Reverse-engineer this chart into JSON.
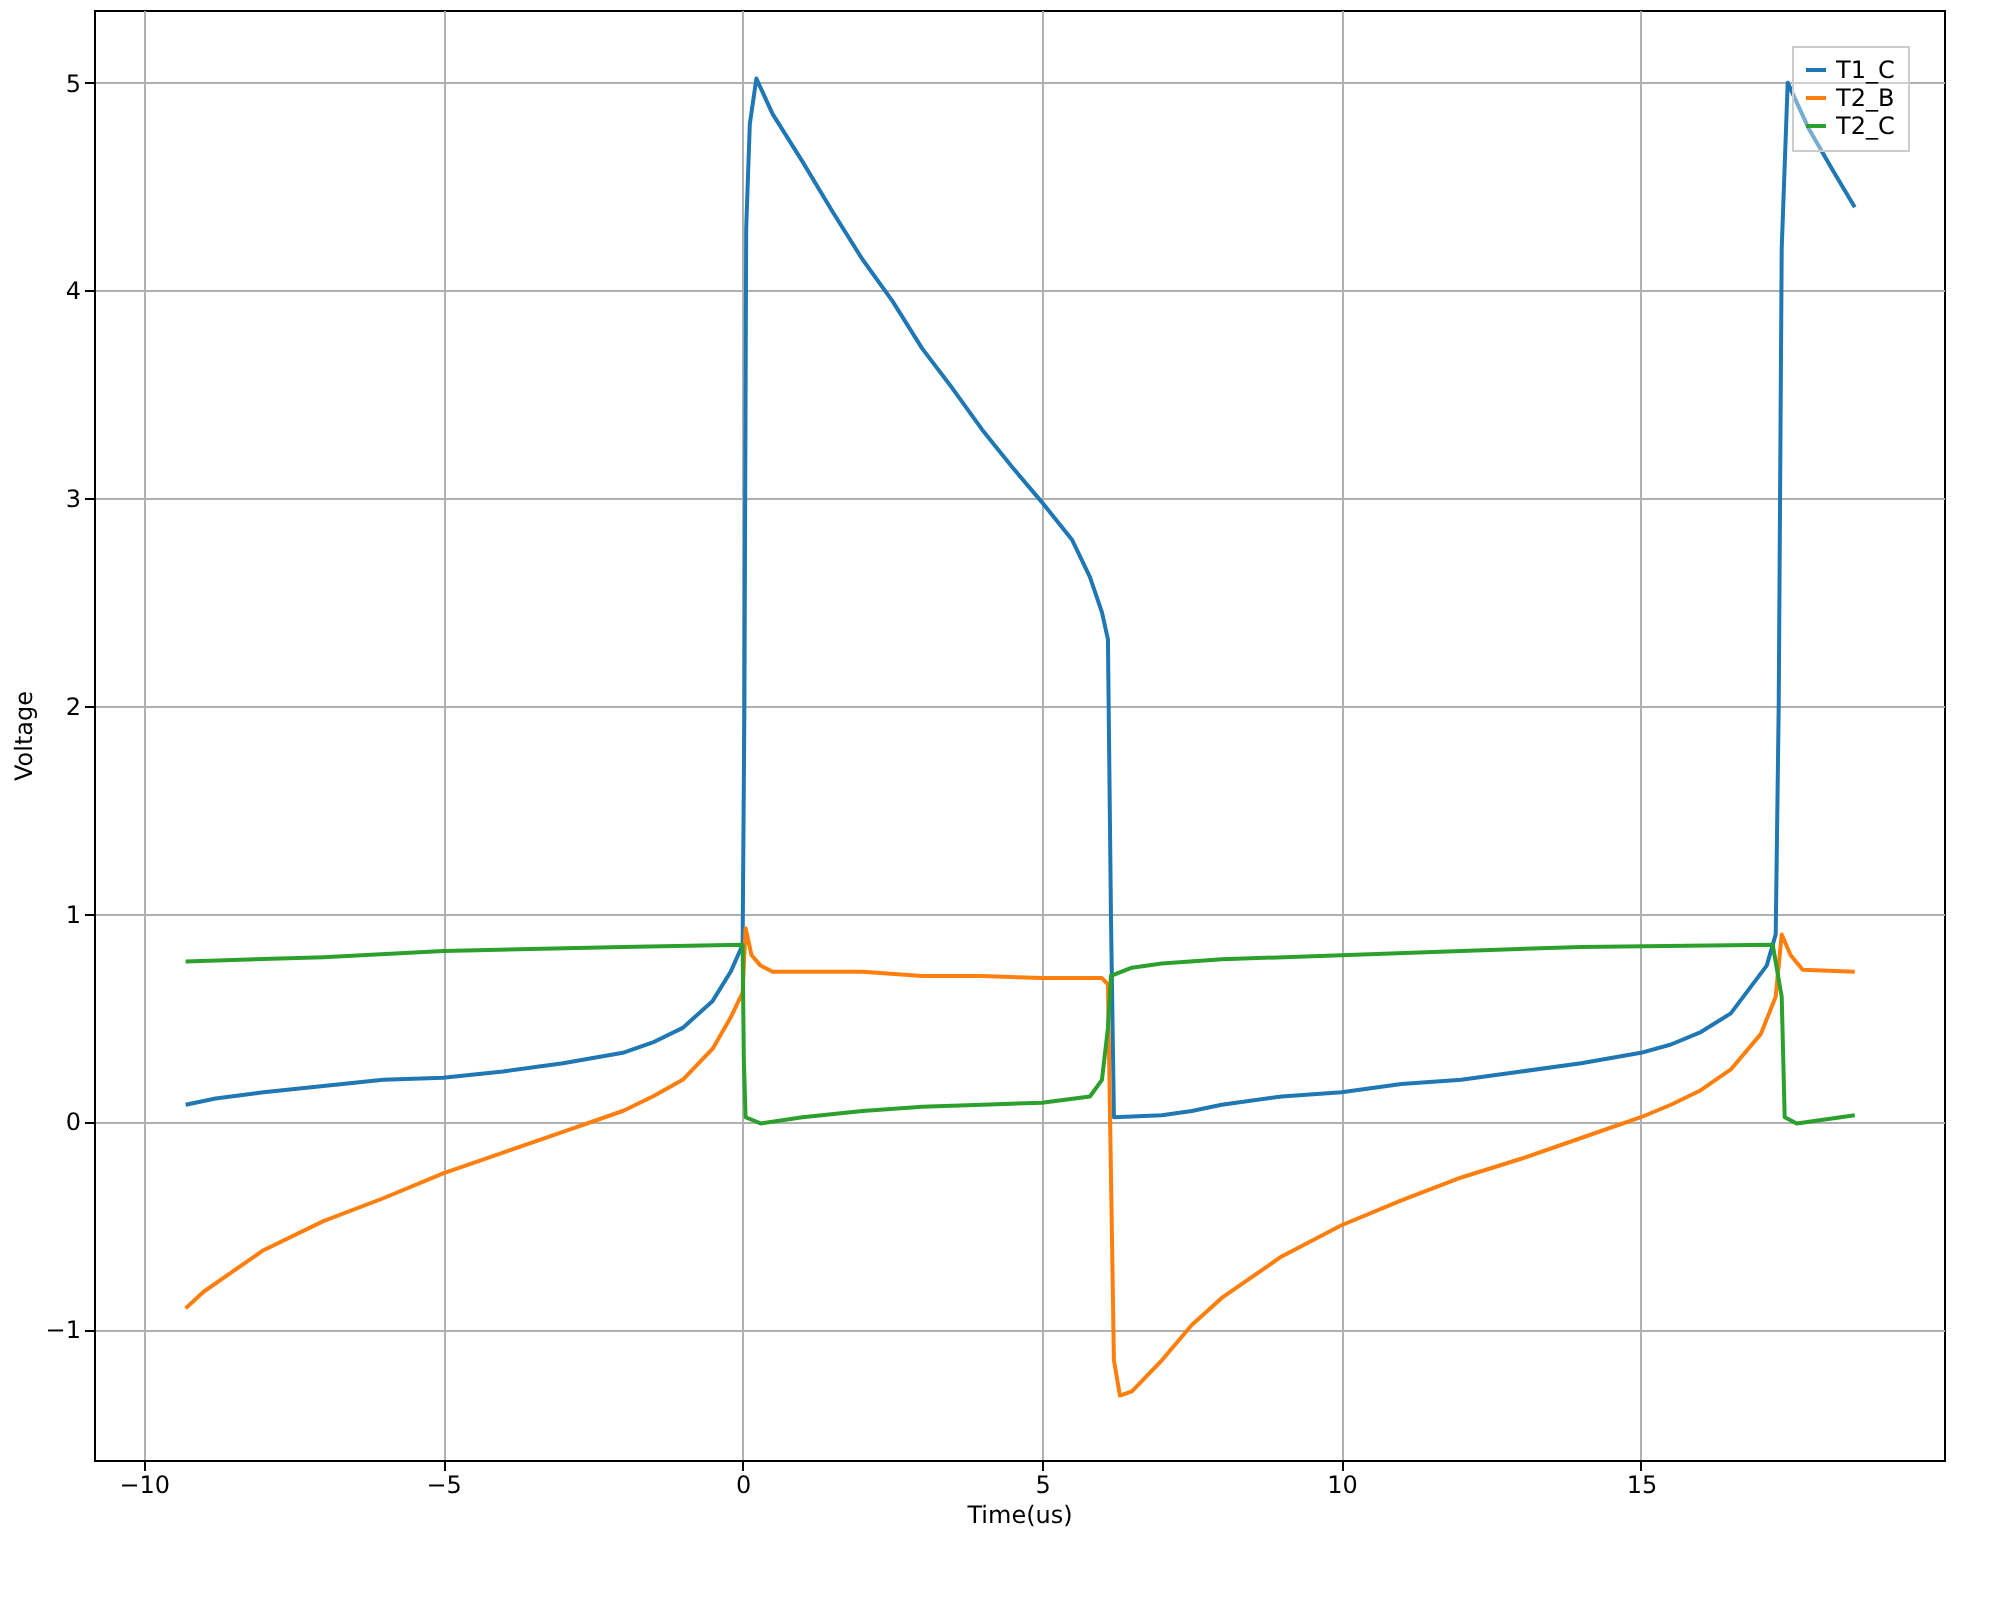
{
  "chart_data": {
    "type": "line",
    "xlabel": "Time(us)",
    "ylabel": "Voltage",
    "xlim": [
      -10.83,
      20.06
    ],
    "ylim": [
      -1.63,
      5.35
    ],
    "xticks": [
      -10,
      -5,
      0,
      5,
      10,
      15
    ],
    "yticks": [
      -1,
      0,
      1,
      2,
      3,
      4,
      5
    ],
    "grid": true,
    "legend": "top right",
    "line_style": "solid",
    "marker": "none",
    "series": [
      {
        "name": "T1_C",
        "color": "#1f77b4",
        "x": [
          -9.3,
          -8.8,
          -8,
          -7,
          -6,
          -5,
          -4,
          -3,
          -2,
          -1.5,
          -1,
          -0.5,
          -0.2,
          0,
          0.03,
          0.06,
          0.12,
          0.23,
          0.5,
          1,
          1.5,
          2,
          2.5,
          3,
          3.5,
          4,
          4.5,
          5,
          5.5,
          5.8,
          6.0,
          6.1,
          6.15,
          6.2,
          7,
          7.5,
          8,
          9,
          10,
          11,
          12,
          13,
          14,
          15,
          15.5,
          16,
          16.5,
          17.1,
          17.25,
          17.3,
          17.35,
          17.45,
          17.8,
          18.2,
          18.57
        ],
        "values": [
          0.08,
          0.11,
          0.14,
          0.17,
          0.2,
          0.21,
          0.24,
          0.28,
          0.33,
          0.38,
          0.45,
          0.58,
          0.72,
          0.85,
          2.0,
          4.3,
          4.8,
          5.02,
          4.85,
          4.62,
          4.38,
          4.15,
          3.95,
          3.72,
          3.53,
          3.33,
          3.15,
          2.98,
          2.8,
          2.62,
          2.45,
          2.32,
          1.0,
          0.02,
          0.03,
          0.05,
          0.08,
          0.12,
          0.14,
          0.18,
          0.2,
          0.24,
          0.28,
          0.33,
          0.37,
          0.43,
          0.52,
          0.75,
          0.9,
          2.0,
          4.2,
          5.0,
          4.78,
          4.58,
          4.4
        ]
      },
      {
        "name": "T2_B",
        "color": "#ff7f0e",
        "x": [
          -9.3,
          -9,
          -8.5,
          -8,
          -7,
          -6,
          -5,
          -4,
          -3,
          -2,
          -1.5,
          -1,
          -0.5,
          -0.2,
          0,
          0.05,
          0.15,
          0.3,
          0.5,
          2,
          3,
          4,
          5,
          6,
          6.1,
          6.2,
          6.3,
          6.5,
          7,
          7.5,
          8,
          9,
          10,
          11,
          12,
          13,
          14,
          15,
          15.5,
          16,
          16.5,
          17,
          17.25,
          17.35,
          17.5,
          17.7,
          18.57
        ],
        "values": [
          -0.9,
          -0.82,
          -0.72,
          -0.62,
          -0.48,
          -0.37,
          -0.25,
          -0.15,
          -0.05,
          0.05,
          0.12,
          0.2,
          0.35,
          0.5,
          0.62,
          0.93,
          0.8,
          0.75,
          0.72,
          0.72,
          0.7,
          0.7,
          0.69,
          0.69,
          0.66,
          -1.15,
          -1.32,
          -1.3,
          -1.15,
          -0.98,
          -0.85,
          -0.65,
          -0.5,
          -0.38,
          -0.27,
          -0.18,
          -0.08,
          0.02,
          0.08,
          0.15,
          0.25,
          0.42,
          0.6,
          0.9,
          0.8,
          0.73,
          0.72
        ]
      },
      {
        "name": "T2_C",
        "color": "#2ca02c",
        "x": [
          -9.3,
          -7,
          -5,
          -2,
          0,
          0.02,
          0.05,
          0.3,
          1,
          2,
          3,
          4,
          5,
          5.8,
          6.0,
          6.1,
          6.15,
          6.5,
          7,
          8,
          10,
          12,
          14,
          17.2,
          17.35,
          17.4,
          17.6,
          18.57
        ],
        "values": [
          0.77,
          0.79,
          0.82,
          0.84,
          0.85,
          0.3,
          0.02,
          -0.01,
          0.02,
          0.05,
          0.07,
          0.08,
          0.09,
          0.12,
          0.2,
          0.45,
          0.7,
          0.74,
          0.76,
          0.78,
          0.8,
          0.82,
          0.84,
          0.85,
          0.6,
          0.02,
          -0.01,
          0.03
        ]
      }
    ]
  }
}
